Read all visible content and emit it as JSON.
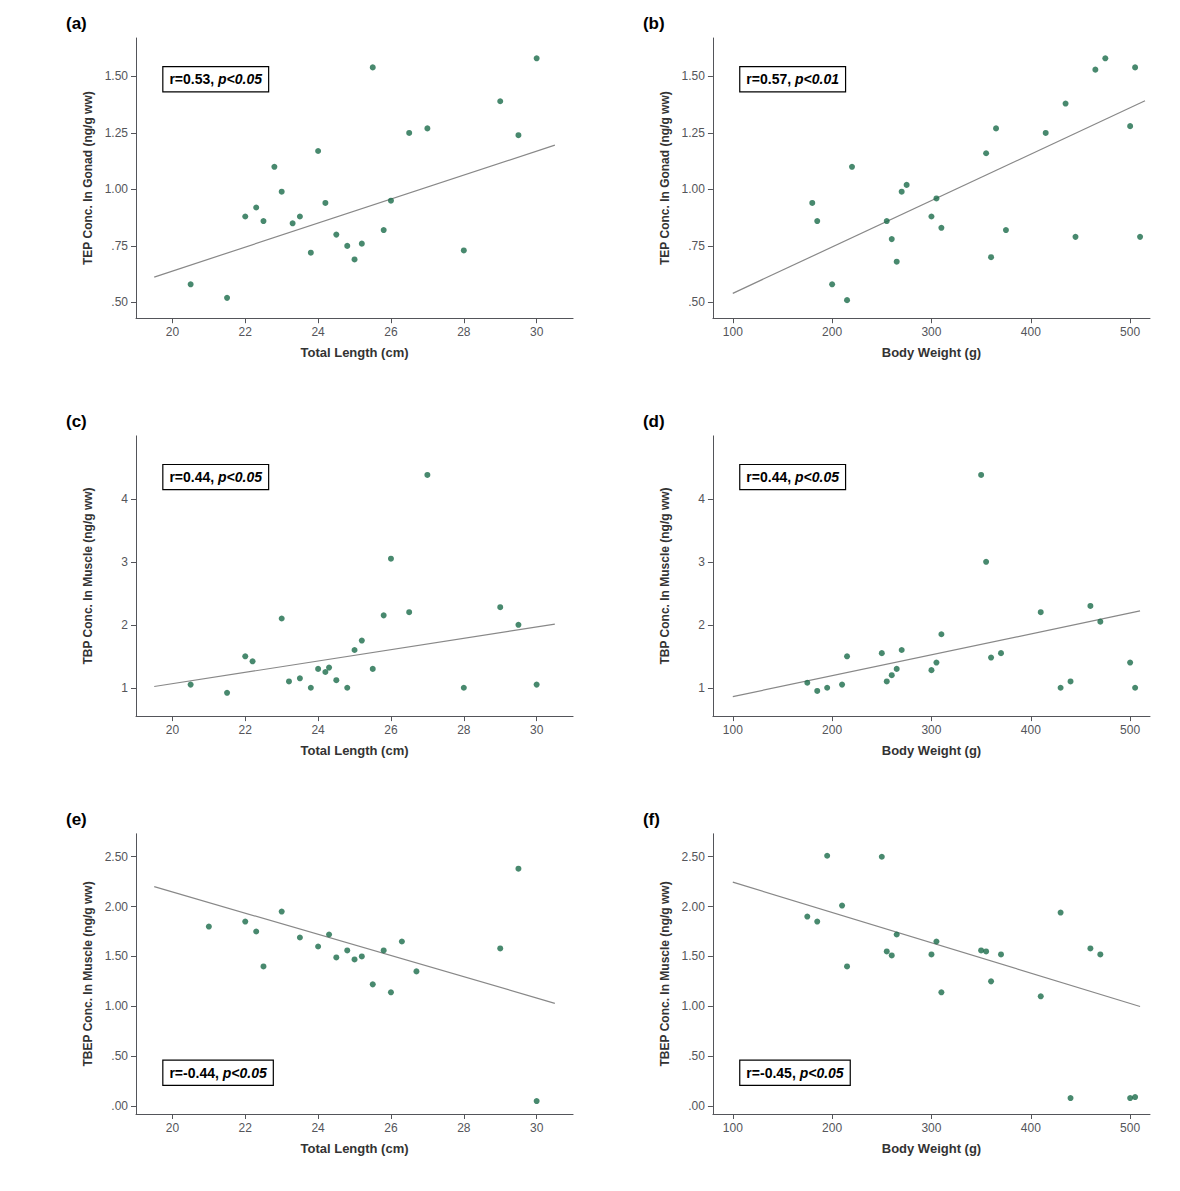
{
  "chart_data": [
    {
      "type": "scatter",
      "title": "(a)",
      "xlabel": "Total Length (cm)",
      "ylabel": "TEP Conc. In Gonad (ng/g ww)",
      "xlim": [
        19,
        31
      ],
      "ylim": [
        0.43,
        1.67
      ],
      "xticks": [
        20,
        22,
        24,
        26,
        28,
        30
      ],
      "yticks": [
        {
          "value": 0.5,
          "label": ".50"
        },
        {
          "value": 0.75,
          "label": ".75"
        },
        {
          "value": 1.0,
          "label": "1.00"
        },
        {
          "value": 1.25,
          "label": "1.25"
        },
        {
          "value": 1.5,
          "label": "1.50"
        }
      ],
      "grid": false,
      "series": [
        {
          "type": "scatter",
          "color": "#1a6b4a",
          "x": [
            20.5,
            21.5,
            22.0,
            22.3,
            22.5,
            22.8,
            23.0,
            23.3,
            23.5,
            23.8,
            24.0,
            24.2,
            24.5,
            24.8,
            25.0,
            25.2,
            25.5,
            25.8,
            26.0,
            26.5,
            27.0,
            28.0,
            29.0,
            29.5,
            30.0
          ],
          "values": [
            0.58,
            0.52,
            0.88,
            0.92,
            0.86,
            1.1,
            0.99,
            0.85,
            0.88,
            0.72,
            1.17,
            0.94,
            0.8,
            0.75,
            0.69,
            0.76,
            1.54,
            0.82,
            0.95,
            1.25,
            1.27,
            0.73,
            1.39,
            1.24,
            1.58
          ]
        },
        {
          "type": "line",
          "color": "#888888",
          "x": [
            19.5,
            30.5
          ],
          "values": [
            0.612,
            1.196
          ]
        }
      ],
      "annotations": [
        "r=0.53, p<0.05"
      ]
    },
    {
      "type": "scatter",
      "title": "(b)",
      "xlabel": "Body Weight (g)",
      "ylabel": "TEP Conc. In Gonad (ng/g ww)",
      "xlim": [
        80,
        520
      ],
      "ylim": [
        0.43,
        1.67
      ],
      "xticks": [
        100,
        200,
        300,
        400,
        500
      ],
      "yticks": [
        {
          "value": 0.5,
          "label": ".50"
        },
        {
          "value": 0.75,
          "label": ".75"
        },
        {
          "value": 1.0,
          "label": "1.00"
        },
        {
          "value": 1.25,
          "label": "1.25"
        },
        {
          "value": 1.5,
          "label": "1.50"
        }
      ],
      "grid": false,
      "series": [
        {
          "type": "scatter",
          "color": "#1a6b4a",
          "x": [
            180,
            185,
            200,
            215,
            220,
            255,
            260,
            265,
            270,
            275,
            300,
            305,
            310,
            355,
            360,
            365,
            375,
            415,
            435,
            445,
            465,
            475,
            500,
            505,
            510
          ],
          "values": [
            0.94,
            0.86,
            0.58,
            0.51,
            1.1,
            0.86,
            0.78,
            0.68,
            0.99,
            1.02,
            0.88,
            0.96,
            0.83,
            1.16,
            0.7,
            1.27,
            0.82,
            1.25,
            1.38,
            0.79,
            1.53,
            1.58,
            1.28,
            1.54,
            0.79
          ]
        },
        {
          "type": "line",
          "color": "#888888",
          "x": [
            100,
            515
          ],
          "values": [
            0.54,
            1.392
          ]
        }
      ],
      "annotations": [
        "r=0.57, p<0.01"
      ]
    },
    {
      "type": "scatter",
      "title": "(c)",
      "xlabel": "Total Length (cm)",
      "ylabel": "TBP Conc. In Muscle (ng/g ww)",
      "xlim": [
        19,
        31
      ],
      "ylim": [
        0.55,
        5.0
      ],
      "xticks": [
        20,
        22,
        24,
        26,
        28,
        30
      ],
      "yticks": [
        1,
        2,
        3,
        4
      ],
      "grid": false,
      "series": [
        {
          "type": "scatter",
          "color": "#1a6b4a",
          "x": [
            20.5,
            21.5,
            22.0,
            22.2,
            23.0,
            23.2,
            23.5,
            23.8,
            24.0,
            24.2,
            24.5,
            24.8,
            25.0,
            25.2,
            25.5,
            25.8,
            26.0,
            26.5,
            27.0,
            28.0,
            29.0,
            29.5,
            30.0,
            24.3
          ],
          "values": [
            1.05,
            0.92,
            1.5,
            1.42,
            2.1,
            1.1,
            1.15,
            1.0,
            1.3,
            1.25,
            1.12,
            1.0,
            1.6,
            1.75,
            1.3,
            2.15,
            3.05,
            2.2,
            4.38,
            1.0,
            2.28,
            2.0,
            1.05,
            1.32
          ]
        },
        {
          "type": "line",
          "color": "#888888",
          "x": [
            19.5,
            30.5
          ],
          "values": [
            1.02,
            2.01
          ]
        }
      ],
      "annotations": [
        "r=0.44, p<0.05"
      ]
    },
    {
      "type": "scatter",
      "title": "(d)",
      "xlabel": "Body Weight (g)",
      "ylabel": "TBP Conc. In Muscle (ng/g ww)",
      "xlim": [
        80,
        520
      ],
      "ylim": [
        0.55,
        5.0
      ],
      "xticks": [
        100,
        200,
        300,
        400,
        500
      ],
      "yticks": [
        1,
        2,
        3,
        4
      ],
      "grid": false,
      "series": [
        {
          "type": "scatter",
          "color": "#1a6b4a",
          "x": [
            175,
            185,
            195,
            210,
            215,
            250,
            255,
            260,
            265,
            270,
            300,
            305,
            310,
            350,
            355,
            360,
            370,
            410,
            430,
            440,
            460,
            470,
            500,
            505
          ],
          "values": [
            1.08,
            0.95,
            1.0,
            1.05,
            1.5,
            1.55,
            1.1,
            1.2,
            1.3,
            1.6,
            1.28,
            1.4,
            1.85,
            4.38,
            3.0,
            1.48,
            1.55,
            2.2,
            1.0,
            1.1,
            2.3,
            2.05,
            1.4,
            1.0
          ]
        },
        {
          "type": "line",
          "color": "#888888",
          "x": [
            100,
            510
          ],
          "values": [
            0.86,
            2.22
          ]
        }
      ],
      "annotations": [
        "r=0.44, p<0.05"
      ]
    },
    {
      "type": "scatter",
      "title": "(e)",
      "xlabel": "Total Length (cm)",
      "ylabel": "TBEP Conc. In Muscle (ng/g ww)",
      "xlim": [
        19,
        31
      ],
      "ylim": [
        -0.08,
        2.73
      ],
      "xticks": [
        20,
        22,
        24,
        26,
        28,
        30
      ],
      "yticks": [
        {
          "value": 0.0,
          "label": ".00"
        },
        {
          "value": 0.5,
          "label": ".50"
        },
        {
          "value": 1.0,
          "label": "1.00"
        },
        {
          "value": 1.5,
          "label": "1.50"
        },
        {
          "value": 2.0,
          "label": "2.00"
        },
        {
          "value": 2.5,
          "label": "2.50"
        }
      ],
      "grid": false,
      "series": [
        {
          "type": "scatter",
          "color": "#1a6b4a",
          "x": [
            21.0,
            22.0,
            22.3,
            22.5,
            23.0,
            23.5,
            24.0,
            24.3,
            24.5,
            24.8,
            25.0,
            25.2,
            25.5,
            25.8,
            26.0,
            26.3,
            26.7,
            29.0,
            29.5,
            30.0
          ],
          "values": [
            1.8,
            1.85,
            1.75,
            1.4,
            1.95,
            1.69,
            1.6,
            1.72,
            1.49,
            1.56,
            1.47,
            1.5,
            1.22,
            1.56,
            1.14,
            1.65,
            1.35,
            1.58,
            2.38,
            0.05
          ]
        },
        {
          "type": "line",
          "color": "#888888",
          "x": [
            19.5,
            30.5
          ],
          "values": [
            2.2,
            1.03
          ]
        }
      ],
      "annotations": [
        "r=-0.44, p<0.05"
      ]
    },
    {
      "type": "scatter",
      "title": "(f)",
      "xlabel": "Body Weight (g)",
      "ylabel": "TBEP Conc. In Muscle (ng/g ww)",
      "xlim": [
        80,
        520
      ],
      "ylim": [
        -0.08,
        2.73
      ],
      "xticks": [
        100,
        200,
        300,
        400,
        500
      ],
      "yticks": [
        {
          "value": 0.0,
          "label": ".00"
        },
        {
          "value": 0.5,
          "label": ".50"
        },
        {
          "value": 1.0,
          "label": "1.00"
        },
        {
          "value": 1.5,
          "label": "1.50"
        },
        {
          "value": 2.0,
          "label": "2.00"
        },
        {
          "value": 2.5,
          "label": "2.50"
        }
      ],
      "grid": false,
      "series": [
        {
          "type": "scatter",
          "color": "#1a6b4a",
          "x": [
            175,
            185,
            195,
            210,
            215,
            250,
            255,
            260,
            265,
            300,
            305,
            310,
            350,
            355,
            360,
            370,
            410,
            430,
            440,
            460,
            470,
            500,
            505
          ],
          "values": [
            1.9,
            1.85,
            2.51,
            2.01,
            1.4,
            2.5,
            1.55,
            1.51,
            1.72,
            1.52,
            1.65,
            1.14,
            1.56,
            1.55,
            1.25,
            1.52,
            1.1,
            1.94,
            0.08,
            1.58,
            1.52,
            0.08,
            0.09
          ]
        },
        {
          "type": "line",
          "color": "#888888",
          "x": [
            100,
            510
          ],
          "values": [
            2.245,
            0.998
          ]
        }
      ],
      "annotations": [
        "r=-0.45, p<0.05"
      ]
    }
  ]
}
